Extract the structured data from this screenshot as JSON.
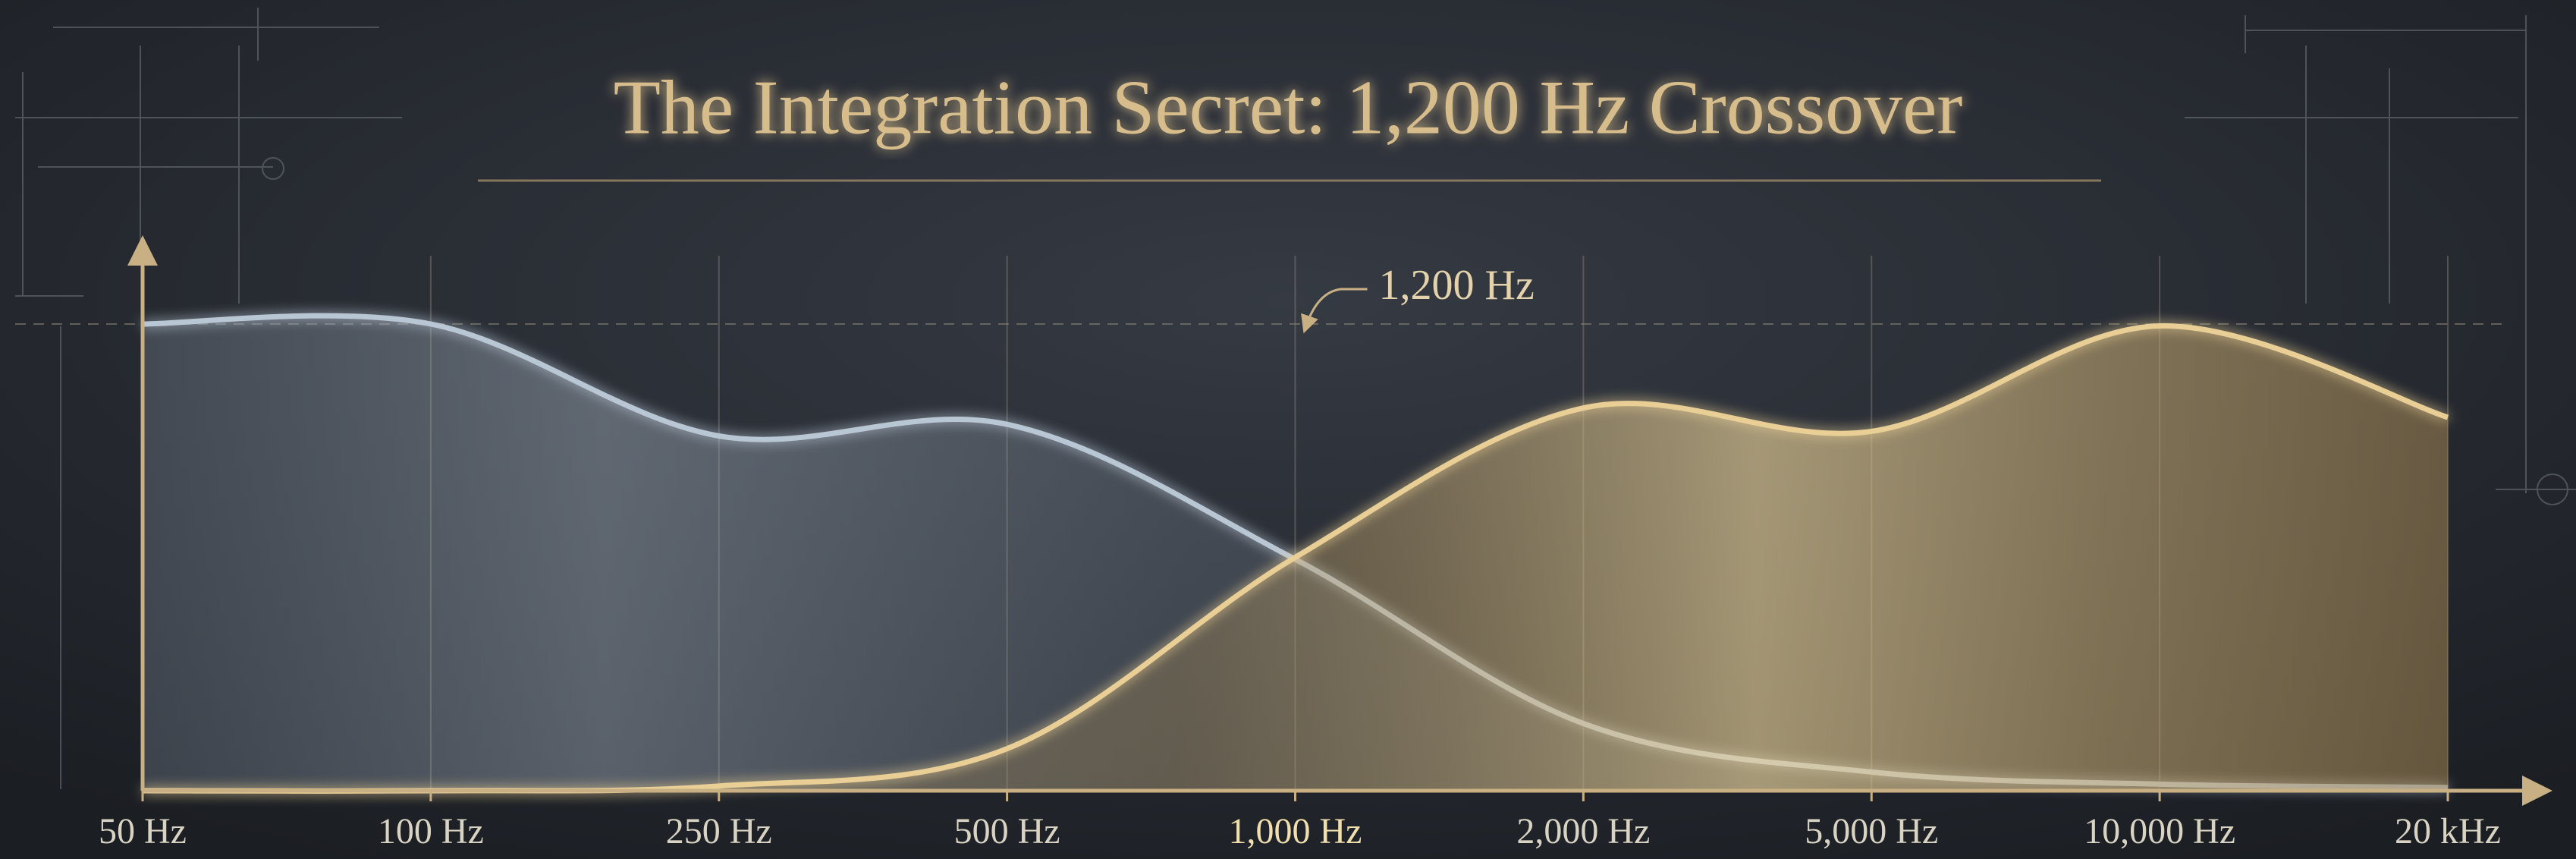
{
  "chart_data": {
    "type": "area",
    "title": "The Integration Secret: 1,200 Hz Crossover",
    "categories": [
      "50 Hz",
      "100 Hz",
      "250 Hz",
      "500 Hz",
      "1,000 Hz",
      "2,000 Hz",
      "5,000 Hz",
      "10,000 Hz",
      "20 kHz"
    ],
    "series": [
      {
        "color": "#b9c6d4",
        "values": [
          100,
          100,
          76,
          78.5,
          49.6,
          14.4,
          4,
          1.4,
          0.7
        ]
      },
      {
        "color": "#e9cf96",
        "values": [
          0,
          0,
          1,
          9,
          50,
          82,
          77,
          99.6,
          80
        ]
      }
    ],
    "ylim": [
      0,
      100
    ],
    "grid": true,
    "annotation": "1,200 Hz"
  }
}
